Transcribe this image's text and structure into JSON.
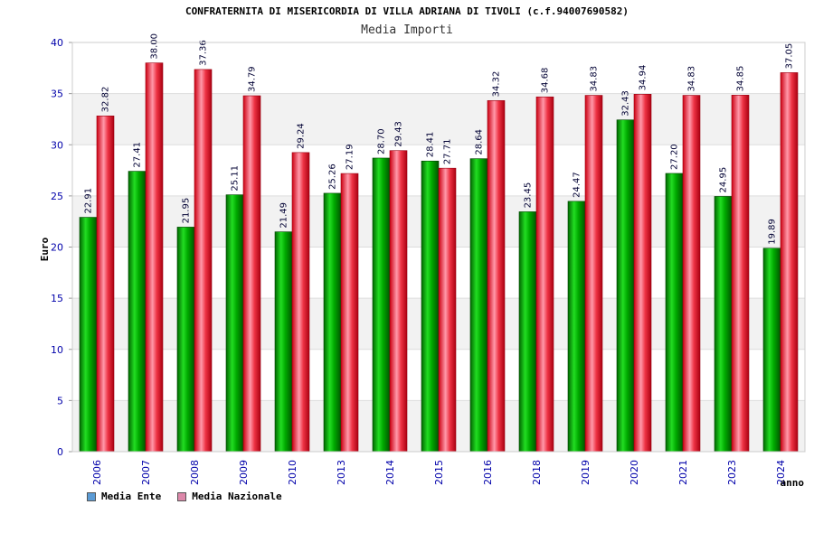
{
  "chart_data": {
    "type": "bar",
    "title": "CONFRATERNITA DI MISERICORDIA DI VILLA ADRIANA DI TIVOLI (c.f.94007690582)",
    "subtitle": "Media Importi",
    "xlabel": "anno",
    "ylabel": "Euro",
    "ylim": [
      0,
      40
    ],
    "yticks": [
      0,
      5,
      10,
      15,
      20,
      25,
      30,
      35,
      40
    ],
    "grid": true,
    "legend_position": "bottom-left",
    "categories": [
      "2006",
      "2007",
      "2008",
      "2009",
      "2010",
      "2013",
      "2014",
      "2015",
      "2016",
      "2018",
      "2019",
      "2020",
      "2021",
      "2023",
      "2024"
    ],
    "series": [
      {
        "name": "Media Ente",
        "color": "#00aa00",
        "legend_color": "#5b9bd5",
        "values": [
          22.91,
          27.41,
          21.95,
          25.11,
          21.49,
          25.26,
          28.7,
          28.41,
          28.64,
          23.45,
          24.47,
          32.43,
          27.2,
          24.95,
          19.89
        ],
        "labels": [
          "22.91",
          "27.41",
          "21.95",
          "25.11",
          "21.49",
          "25.26",
          "28.70",
          "28.41",
          "28.64",
          "23.45",
          "24.47",
          "32.43",
          "27.20",
          "24.95",
          "19.89"
        ]
      },
      {
        "name": "Media Nazionale",
        "color": "#ee1122",
        "legend_color": "#dd88aa",
        "values": [
          32.82,
          38.0,
          37.36,
          34.79,
          29.24,
          27.19,
          29.43,
          27.71,
          34.32,
          34.68,
          34.83,
          34.94,
          34.83,
          34.85,
          37.05
        ],
        "labels": [
          "32.82",
          "38.00",
          "37.36",
          "34.79",
          "29.24",
          "27.19",
          "29.43",
          "27.71",
          "34.32",
          "34.68",
          "34.83",
          "34.94",
          "34.83",
          "34.85",
          "37.05"
        ]
      }
    ]
  }
}
